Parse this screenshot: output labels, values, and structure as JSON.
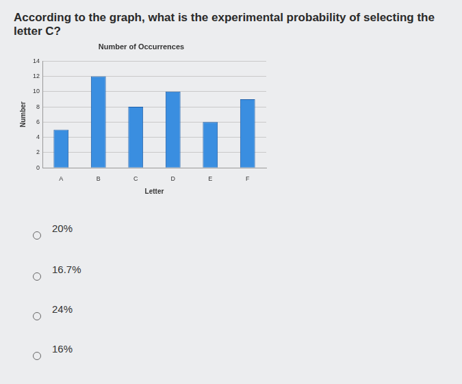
{
  "question": "According to the graph, what is the experimental probability of selecting the letter C?",
  "chart_data": {
    "type": "bar",
    "title": "Number of Occurrences",
    "x_label": "Letter",
    "y_label": "Number",
    "categories": [
      "A",
      "B",
      "C",
      "D",
      "E",
      "F"
    ],
    "values": [
      5,
      12,
      8,
      10,
      6,
      9
    ],
    "color": "#3a8ee0",
    "ylim": [
      0,
      14
    ],
    "yticks": [
      0,
      2,
      4,
      6,
      8,
      10,
      12,
      14
    ],
    "grid": true
  },
  "options": [
    "20%",
    "16.7%",
    "24%",
    "16%"
  ]
}
